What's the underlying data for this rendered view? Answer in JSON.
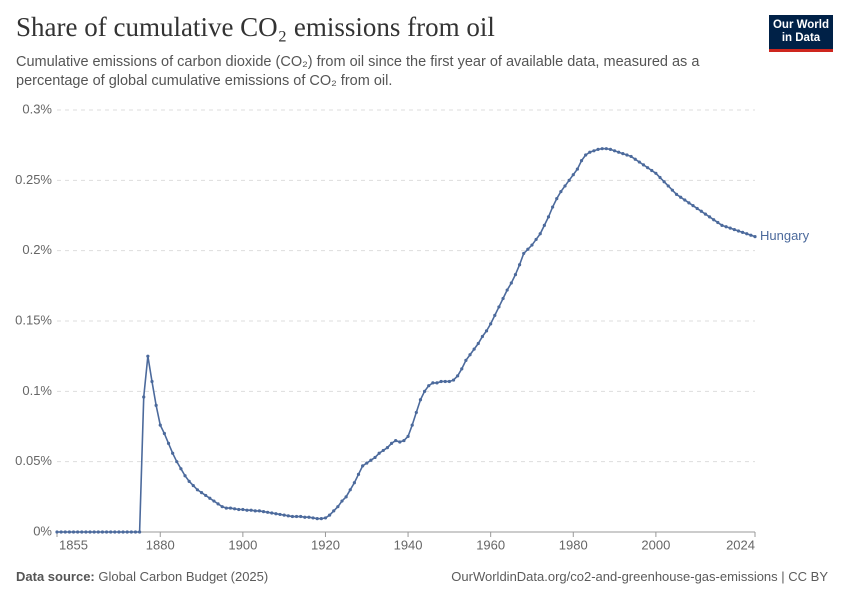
{
  "chart_data": {
    "type": "line",
    "title": "Share of cumulative CO₂ emissions from oil",
    "subtitle": "Cumulative emissions of carbon dioxide (CO₂) from oil since the first year of available data, measured as a percentage of global cumulative emissions of CO₂ from oil.",
    "logo": [
      "Our World",
      "in Data"
    ],
    "source_label": "Data source:",
    "source": "Global Carbon Budget (2025)",
    "url": "OurWorldinData.org/co2-and-greenhouse-gas-emissions | CC BY",
    "x": [
      1855,
      1856,
      1857,
      1858,
      1859,
      1860,
      1861,
      1862,
      1863,
      1864,
      1865,
      1866,
      1867,
      1868,
      1869,
      1870,
      1871,
      1872,
      1873,
      1874,
      1875,
      1876,
      1877,
      1878,
      1879,
      1880,
      1881,
      1882,
      1883,
      1884,
      1885,
      1886,
      1887,
      1888,
      1889,
      1890,
      1891,
      1892,
      1893,
      1894,
      1895,
      1896,
      1897,
      1898,
      1899,
      1900,
      1901,
      1902,
      1903,
      1904,
      1905,
      1906,
      1907,
      1908,
      1909,
      1910,
      1911,
      1912,
      1913,
      1914,
      1915,
      1916,
      1917,
      1918,
      1919,
      1920,
      1921,
      1922,
      1923,
      1924,
      1925,
      1926,
      1927,
      1928,
      1929,
      1930,
      1931,
      1932,
      1933,
      1934,
      1935,
      1936,
      1937,
      1938,
      1939,
      1940,
      1941,
      1942,
      1943,
      1944,
      1945,
      1946,
      1947,
      1948,
      1949,
      1950,
      1951,
      1952,
      1953,
      1954,
      1955,
      1956,
      1957,
      1958,
      1959,
      1960,
      1961,
      1962,
      1963,
      1964,
      1965,
      1966,
      1967,
      1968,
      1969,
      1970,
      1971,
      1972,
      1973,
      1974,
      1975,
      1976,
      1977,
      1978,
      1979,
      1980,
      1981,
      1982,
      1983,
      1984,
      1985,
      1986,
      1987,
      1988,
      1989,
      1990,
      1991,
      1992,
      1993,
      1994,
      1995,
      1996,
      1997,
      1998,
      1999,
      2000,
      2001,
      2002,
      2003,
      2004,
      2005,
      2006,
      2007,
      2008,
      2009,
      2010,
      2011,
      2012,
      2013,
      2014,
      2015,
      2016,
      2017,
      2018,
      2019,
      2020,
      2021,
      2022,
      2023,
      2024
    ],
    "series": [
      {
        "name": "Hungary",
        "color": "#4c6a9c",
        "values": [
          0,
          0,
          0,
          0,
          0,
          0,
          0,
          0,
          0,
          0,
          0,
          0,
          0,
          0,
          0,
          0,
          0,
          0,
          0,
          0,
          0,
          0.096,
          0.125,
          0.107,
          0.09,
          0.076,
          0.07,
          0.063,
          0.056,
          0.05,
          0.045,
          0.04,
          0.036,
          0.033,
          0.03,
          0.028,
          0.026,
          0.024,
          0.022,
          0.02,
          0.018,
          0.017,
          0.017,
          0.0165,
          0.016,
          0.016,
          0.0155,
          0.0155,
          0.015,
          0.015,
          0.0145,
          0.014,
          0.0135,
          0.013,
          0.0125,
          0.012,
          0.0115,
          0.011,
          0.011,
          0.011,
          0.0105,
          0.0105,
          0.01,
          0.0095,
          0.0095,
          0.01,
          0.012,
          0.015,
          0.018,
          0.022,
          0.025,
          0.03,
          0.035,
          0.041,
          0.047,
          0.049,
          0.051,
          0.053,
          0.056,
          0.058,
          0.06,
          0.063,
          0.065,
          0.064,
          0.065,
          0.068,
          0.076,
          0.085,
          0.094,
          0.1,
          0.104,
          0.106,
          0.106,
          0.107,
          0.107,
          0.107,
          0.108,
          0.111,
          0.116,
          0.122,
          0.126,
          0.13,
          0.134,
          0.139,
          0.143,
          0.148,
          0.154,
          0.16,
          0.166,
          0.172,
          0.177,
          0.183,
          0.19,
          0.198,
          0.201,
          0.204,
          0.208,
          0.212,
          0.218,
          0.224,
          0.231,
          0.237,
          0.242,
          0.246,
          0.25,
          0.254,
          0.258,
          0.264,
          0.268,
          0.27,
          0.271,
          0.272,
          0.2725,
          0.2725,
          0.272,
          0.271,
          0.27,
          0.269,
          0.268,
          0.267,
          0.265,
          0.263,
          0.261,
          0.259,
          0.257,
          0.255,
          0.252,
          0.249,
          0.246,
          0.243,
          0.24,
          0.238,
          0.236,
          0.234,
          0.232,
          0.23,
          0.228,
          0.226,
          0.224,
          0.222,
          0.22,
          0.218,
          0.217,
          0.216,
          0.215,
          0.214,
          0.213,
          0.212,
          0.211,
          0.21
        ]
      }
    ],
    "xlim": [
      1855,
      2024
    ],
    "xticks": [
      1855,
      1880,
      1900,
      1920,
      1940,
      1960,
      1980,
      2000,
      2024
    ],
    "ylim": [
      0,
      0.3
    ],
    "yticks": [
      {
        "value": 0,
        "label": "0%"
      },
      {
        "value": 0.05,
        "label": "0.05%"
      },
      {
        "value": 0.1,
        "label": "0.1%"
      },
      {
        "value": 0.15,
        "label": "0.15%"
      },
      {
        "value": 0.2,
        "label": "0.2%"
      },
      {
        "value": 0.25,
        "label": "0.25%"
      },
      {
        "value": 0.3,
        "label": "0.3%"
      }
    ],
    "grid": true
  }
}
